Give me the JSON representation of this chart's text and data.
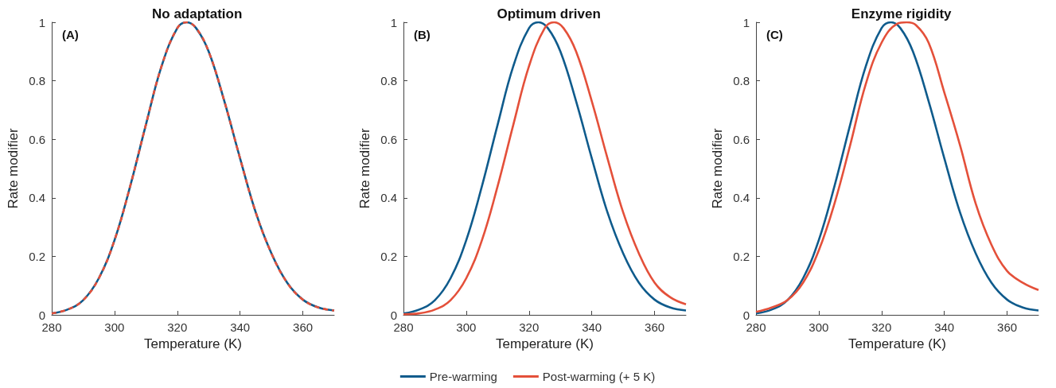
{
  "chart_data": [
    {
      "type": "line",
      "title": "No adaptation",
      "xlabel": "Temperature (K)",
      "ylabel": "Rate modifier",
      "annotations": [
        "(A)"
      ],
      "xlim": [
        280,
        370
      ],
      "xticks": [
        280,
        300,
        320,
        340,
        360
      ],
      "ylim": [
        0,
        1
      ],
      "yticks": [
        0,
        0.2,
        0.4,
        0.6,
        0.8,
        1
      ],
      "marker": "none",
      "legend": false,
      "series": [
        {
          "color": "#0f5b8c",
          "line_style": "solid",
          "x": [
            280,
            285,
            290,
            295,
            300,
            305,
            310,
            315,
            320,
            323,
            326,
            330,
            335,
            340,
            345,
            350,
            355,
            360,
            365,
            370
          ],
          "values": [
            0.005,
            0.018,
            0.05,
            0.125,
            0.255,
            0.44,
            0.65,
            0.85,
            0.98,
            1,
            0.98,
            0.9,
            0.73,
            0.535,
            0.35,
            0.21,
            0.11,
            0.052,
            0.025,
            0.015
          ]
        },
        {
          "color": "#e4503a",
          "line_style": "dashed",
          "x": [
            280,
            285,
            290,
            295,
            300,
            305,
            310,
            315,
            320,
            323,
            326,
            330,
            335,
            340,
            345,
            350,
            355,
            360,
            365,
            370
          ],
          "values": [
            0.005,
            0.018,
            0.05,
            0.125,
            0.255,
            0.44,
            0.65,
            0.85,
            0.98,
            1,
            0.98,
            0.9,
            0.73,
            0.535,
            0.35,
            0.21,
            0.11,
            0.052,
            0.025,
            0.015
          ]
        }
      ]
    },
    {
      "type": "line",
      "title": "Optimum driven",
      "xlabel": "Temperature (K)",
      "ylabel": "Rate modifier",
      "annotations": [
        "(B)"
      ],
      "xlim": [
        280,
        370
      ],
      "xticks": [
        280,
        300,
        320,
        340,
        360
      ],
      "ylim": [
        0,
        1
      ],
      "yticks": [
        0,
        0.2,
        0.4,
        0.6,
        0.8,
        1
      ],
      "marker": "none",
      "legend": "bottom",
      "series": [
        {
          "name": "Pre-warming",
          "color": "#0f5b8c",
          "line_style": "solid",
          "x": [
            280,
            285,
            290,
            295,
            300,
            305,
            310,
            315,
            320,
            323,
            326,
            330,
            335,
            340,
            345,
            350,
            355,
            360,
            365,
            370
          ],
          "values": [
            0.005,
            0.018,
            0.05,
            0.125,
            0.255,
            0.44,
            0.65,
            0.85,
            0.98,
            1,
            0.98,
            0.9,
            0.73,
            0.535,
            0.35,
            0.21,
            0.11,
            0.052,
            0.025,
            0.015
          ]
        },
        {
          "name": "Post-warming (+ 5 K)",
          "color": "#e4503a",
          "line_style": "solid",
          "x": [
            280,
            285,
            290,
            295,
            300,
            305,
            310,
            315,
            320,
            325,
            328,
            331,
            335,
            340,
            345,
            350,
            355,
            360,
            365,
            370
          ],
          "values": [
            0.002,
            0.005,
            0.018,
            0.05,
            0.125,
            0.255,
            0.44,
            0.65,
            0.85,
            0.98,
            1,
            0.98,
            0.9,
            0.73,
            0.535,
            0.35,
            0.21,
            0.11,
            0.06,
            0.036
          ]
        }
      ]
    },
    {
      "type": "line",
      "title": "Enzyme rigidity",
      "xlabel": "Temperature (K)",
      "ylabel": "Rate modifier",
      "annotations": [
        "(C)"
      ],
      "xlim": [
        280,
        370
      ],
      "xticks": [
        280,
        300,
        320,
        340,
        360
      ],
      "ylim": [
        0,
        1
      ],
      "yticks": [
        0,
        0.2,
        0.4,
        0.6,
        0.8,
        1
      ],
      "marker": "none",
      "legend": false,
      "series": [
        {
          "color": "#0f5b8c",
          "line_style": "solid",
          "x": [
            280,
            285,
            290,
            295,
            300,
            305,
            310,
            315,
            320,
            323,
            326,
            330,
            335,
            340,
            345,
            350,
            355,
            360,
            365,
            370
          ],
          "values": [
            0.005,
            0.018,
            0.05,
            0.125,
            0.255,
            0.44,
            0.65,
            0.85,
            0.98,
            1,
            0.98,
            0.9,
            0.73,
            0.535,
            0.35,
            0.21,
            0.11,
            0.052,
            0.025,
            0.015
          ]
        },
        {
          "color": "#e4503a",
          "line_style": "solid",
          "x": [
            280,
            285,
            290,
            295,
            300,
            305,
            310,
            315,
            320,
            325,
            328,
            331,
            335,
            340,
            345,
            350,
            355,
            360,
            365,
            370
          ],
          "values": [
            0.01,
            0.025,
            0.05,
            0.11,
            0.22,
            0.38,
            0.58,
            0.79,
            0.93,
            0.995,
            1,
            0.99,
            0.93,
            0.76,
            0.58,
            0.38,
            0.24,
            0.15,
            0.11,
            0.085
          ]
        }
      ]
    }
  ]
}
